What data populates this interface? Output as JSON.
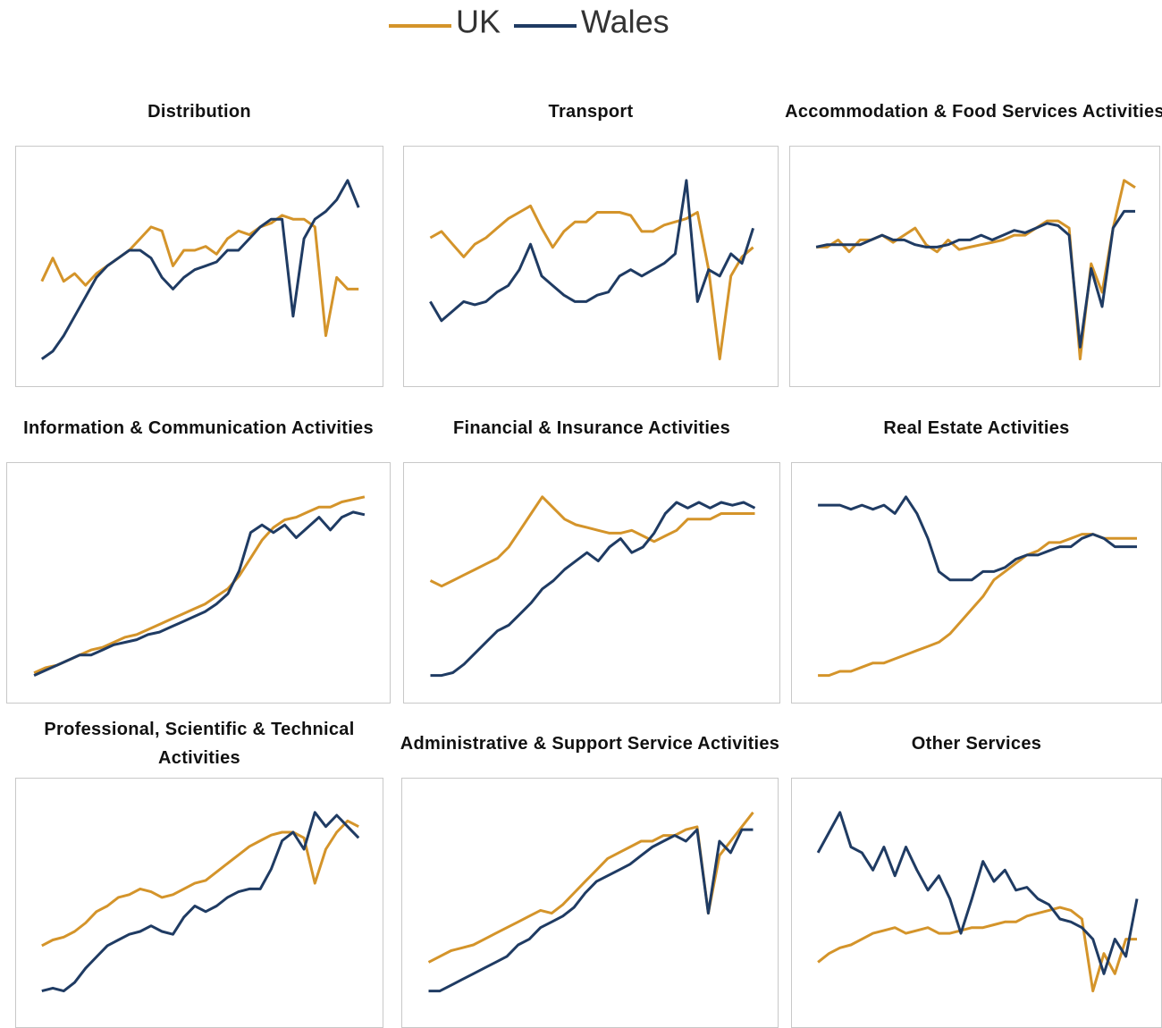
{
  "chart_data": [
    {
      "type": "line",
      "title": "Distribution",
      "series": [
        {
          "name": "UK",
          "color": "#d4942a",
          "values": [
            44,
            50,
            44,
            46,
            43,
            46,
            48,
            50,
            52,
            55,
            58,
            57,
            48,
            52,
            52,
            53,
            51,
            55,
            57,
            56,
            58,
            59,
            61,
            60,
            60,
            58,
            30,
            45,
            42,
            42
          ]
        },
        {
          "name": "Wales",
          "color": "#1f3b63",
          "values": [
            24,
            26,
            30,
            35,
            40,
            45,
            48,
            50,
            52,
            52,
            50,
            45,
            42,
            45,
            47,
            48,
            49,
            52,
            52,
            55,
            58,
            60,
            60,
            35,
            55,
            60,
            62,
            65,
            70,
            63
          ]
        }
      ]
    },
    {
      "type": "line",
      "title": "Transport",
      "series": [
        {
          "name": "UK",
          "color": "#d4942a",
          "values": [
            50,
            52,
            48,
            44,
            48,
            50,
            53,
            56,
            58,
            60,
            53,
            47,
            52,
            55,
            55,
            58,
            58,
            58,
            57,
            52,
            52,
            54,
            55,
            56,
            58,
            40,
            12,
            38,
            44,
            47
          ]
        },
        {
          "name": "Wales",
          "color": "#1f3b63",
          "values": [
            30,
            24,
            27,
            30,
            29,
            30,
            33,
            35,
            40,
            48,
            38,
            35,
            32,
            30,
            30,
            32,
            33,
            38,
            40,
            38,
            40,
            42,
            45,
            68,
            30,
            40,
            38,
            45,
            42,
            53
          ]
        }
      ]
    },
    {
      "type": "line",
      "title": "Accommodation & Food Services Activities",
      "series": [
        {
          "name": "UK",
          "color": "#d4942a",
          "values": [
            57,
            57,
            60,
            55,
            60,
            60,
            62,
            59,
            62,
            65,
            58,
            55,
            60,
            56,
            57,
            58,
            59,
            60,
            62,
            62,
            65,
            68,
            68,
            65,
            10,
            50,
            38,
            65,
            85,
            82
          ]
        },
        {
          "name": "Wales",
          "color": "#1f3b63",
          "values": [
            57,
            58,
            58,
            58,
            58,
            60,
            62,
            60,
            60,
            58,
            57,
            57,
            58,
            60,
            60,
            62,
            60,
            62,
            64,
            63,
            65,
            67,
            66,
            62,
            15,
            48,
            32,
            65,
            72,
            72
          ]
        }
      ]
    },
    {
      "type": "line",
      "title": "Information & Communication Activities",
      "series": [
        {
          "name": "UK",
          "color": "#d4942a",
          "values": [
            15,
            17,
            18,
            20,
            22,
            24,
            25,
            27,
            29,
            30,
            32,
            34,
            36,
            38,
            40,
            42,
            45,
            48,
            53,
            60,
            67,
            72,
            75,
            76,
            78,
            80,
            80,
            82,
            83,
            84
          ]
        },
        {
          "name": "Wales",
          "color": "#1f3b63",
          "values": [
            14,
            16,
            18,
            20,
            22,
            22,
            24,
            26,
            27,
            28,
            30,
            31,
            33,
            35,
            37,
            39,
            42,
            46,
            55,
            70,
            73,
            70,
            73,
            68,
            72,
            76,
            71,
            76,
            78,
            77
          ]
        }
      ]
    },
    {
      "type": "line",
      "title": "Financial & Insurance Activities",
      "series": [
        {
          "name": "UK",
          "color": "#d4942a",
          "values": [
            48,
            46,
            48,
            50,
            52,
            54,
            56,
            60,
            66,
            72,
            78,
            74,
            70,
            68,
            67,
            66,
            65,
            65,
            66,
            64,
            62,
            64,
            66,
            70,
            70,
            70,
            72,
            72,
            72,
            72
          ]
        },
        {
          "name": "Wales",
          "color": "#1f3b63",
          "values": [
            14,
            14,
            15,
            18,
            22,
            26,
            30,
            32,
            36,
            40,
            45,
            48,
            52,
            55,
            58,
            55,
            60,
            63,
            58,
            60,
            65,
            72,
            76,
            74,
            76,
            74,
            76,
            75,
            76,
            74
          ]
        }
      ]
    },
    {
      "type": "line",
      "title": "Real Estate Activities",
      "series": [
        {
          "name": "UK",
          "color": "#d4942a",
          "values": [
            27,
            27,
            28,
            28,
            29,
            30,
            30,
            31,
            32,
            33,
            34,
            35,
            37,
            40,
            43,
            46,
            50,
            52,
            54,
            56,
            57,
            59,
            59,
            60,
            61,
            61,
            60,
            60,
            60,
            60
          ]
        },
        {
          "name": "Wales",
          "color": "#1f3b63",
          "values": [
            68,
            68,
            68,
            67,
            68,
            67,
            68,
            66,
            70,
            66,
            60,
            52,
            50,
            50,
            50,
            52,
            52,
            53,
            55,
            56,
            56,
            57,
            58,
            58,
            60,
            61,
            60,
            58,
            58,
            58
          ]
        }
      ]
    },
    {
      "type": "line",
      "title": "Professional, Scientific & Technical Activities",
      "series": [
        {
          "name": "UK",
          "color": "#d4942a",
          "values": [
            28,
            30,
            31,
            33,
            36,
            40,
            42,
            45,
            46,
            48,
            47,
            45,
            46,
            48,
            50,
            51,
            54,
            57,
            60,
            63,
            65,
            67,
            68,
            68,
            66,
            50,
            62,
            68,
            72,
            70
          ]
        },
        {
          "name": "Wales",
          "color": "#1f3b63",
          "values": [
            12,
            13,
            12,
            15,
            20,
            24,
            28,
            30,
            32,
            33,
            35,
            33,
            32,
            38,
            42,
            40,
            42,
            45,
            47,
            48,
            48,
            55,
            65,
            68,
            62,
            75,
            70,
            74,
            70,
            66
          ]
        }
      ]
    },
    {
      "type": "line",
      "title": "Administrative & Support Service Activities",
      "series": [
        {
          "name": "UK",
          "color": "#d4942a",
          "values": [
            28,
            30,
            32,
            33,
            34,
            36,
            38,
            40,
            42,
            44,
            46,
            45,
            48,
            52,
            56,
            60,
            64,
            66,
            68,
            70,
            70,
            72,
            72,
            74,
            75,
            45,
            65,
            70,
            75,
            80
          ]
        },
        {
          "name": "Wales",
          "color": "#1f3b63",
          "values": [
            18,
            18,
            20,
            22,
            24,
            26,
            28,
            30,
            34,
            36,
            40,
            42,
            44,
            47,
            52,
            56,
            58,
            60,
            62,
            65,
            68,
            70,
            72,
            70,
            74,
            45,
            70,
            66,
            74,
            74
          ]
        }
      ]
    },
    {
      "type": "line",
      "title": "Other Services",
      "series": [
        {
          "name": "UK",
          "color": "#d4942a",
          "values": [
            30,
            33,
            35,
            36,
            38,
            40,
            41,
            42,
            40,
            41,
            42,
            40,
            40,
            41,
            42,
            42,
            43,
            44,
            44,
            46,
            47,
            48,
            49,
            48,
            45,
            20,
            33,
            26,
            38,
            38
          ]
        },
        {
          "name": "Wales",
          "color": "#1f3b63",
          "values": [
            68,
            75,
            82,
            70,
            68,
            62,
            70,
            60,
            70,
            62,
            55,
            60,
            52,
            40,
            52,
            65,
            58,
            62,
            55,
            56,
            52,
            50,
            45,
            44,
            42,
            38,
            26,
            38,
            32,
            52
          ]
        }
      ]
    }
  ]
}
